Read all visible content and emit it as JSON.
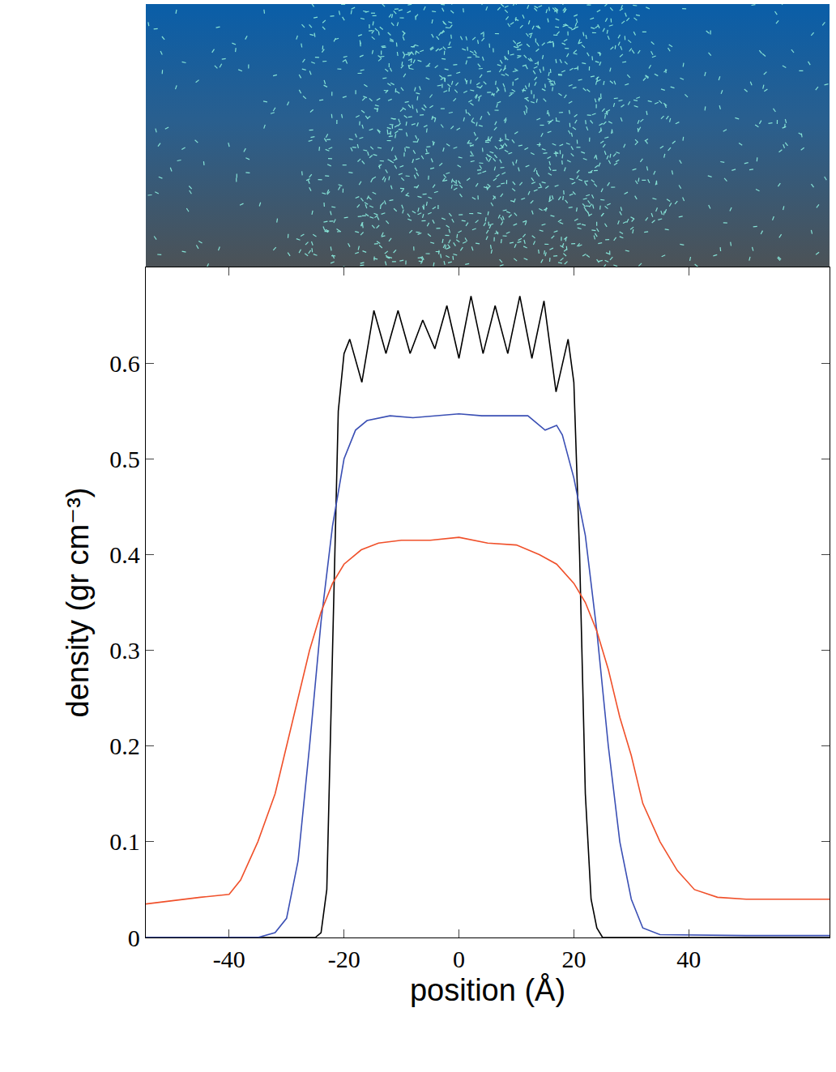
{
  "chart_data": {
    "type": "line",
    "x_label": "position (Å)",
    "y_label": "density (gr cm⁻³)",
    "xlim": [
      -54.5,
      64.5
    ],
    "ylim": [
      0,
      0.7
    ],
    "xticks": [
      -40,
      -20,
      0,
      20,
      40
    ],
    "yticks": [
      0,
      0.1,
      0.2,
      0.3,
      0.4,
      0.5,
      0.6
    ],
    "grid": false,
    "series": [
      {
        "color": "#000000",
        "line_style": "solid",
        "x": [
          -54.5,
          -30,
          -25,
          -24,
          -23,
          -22,
          -21,
          -20,
          -19,
          -16.9,
          -14.8,
          -12.7,
          -10.6,
          -8.5,
          -6.3,
          -4.2,
          -2.1,
          0,
          2.1,
          4.2,
          6.3,
          8.5,
          10.6,
          12.7,
          14.8,
          16.9,
          19,
          20,
          21,
          22,
          23,
          24,
          25,
          40,
          64.5
        ],
        "values": [
          0,
          0,
          0,
          0.005,
          0.05,
          0.3,
          0.55,
          0.61,
          0.625,
          0.58,
          0.655,
          0.61,
          0.655,
          0.61,
          0.645,
          0.615,
          0.66,
          0.605,
          0.67,
          0.61,
          0.66,
          0.61,
          0.67,
          0.605,
          0.665,
          0.57,
          0.625,
          0.58,
          0.4,
          0.15,
          0.04,
          0.01,
          0,
          0,
          0
        ]
      },
      {
        "color": "#3a4fb4",
        "line_style": "solid",
        "x": [
          -54.5,
          -35,
          -32,
          -30,
          -28,
          -26,
          -24,
          -22,
          -20,
          -18,
          -16,
          -12,
          -8,
          -4,
          0,
          4,
          8,
          12,
          15,
          17,
          18,
          20,
          22,
          24,
          26,
          28,
          30,
          32,
          35,
          50,
          64.5
        ],
        "values": [
          0,
          0,
          0.005,
          0.02,
          0.08,
          0.2,
          0.33,
          0.43,
          0.5,
          0.53,
          0.54,
          0.545,
          0.543,
          0.545,
          0.547,
          0.545,
          0.545,
          0.545,
          0.53,
          0.535,
          0.525,
          0.48,
          0.42,
          0.32,
          0.2,
          0.1,
          0.04,
          0.01,
          0.003,
          0.002,
          0.002
        ]
      },
      {
        "color": "#f0502a",
        "line_style": "solid",
        "x": [
          -54.5,
          -45,
          -40,
          -38,
          -35,
          -32,
          -30,
          -28,
          -26,
          -24,
          -22,
          -20,
          -17,
          -14,
          -10,
          -5,
          0,
          5,
          10,
          14,
          17,
          20,
          22,
          24,
          26,
          28,
          30,
          32,
          35,
          38,
          41,
          45,
          50,
          55,
          64.5
        ],
        "values": [
          0.035,
          0.042,
          0.045,
          0.06,
          0.1,
          0.15,
          0.2,
          0.25,
          0.3,
          0.34,
          0.37,
          0.39,
          0.405,
          0.412,
          0.415,
          0.415,
          0.418,
          0.412,
          0.41,
          0.4,
          0.39,
          0.37,
          0.35,
          0.32,
          0.28,
          0.23,
          0.19,
          0.14,
          0.1,
          0.07,
          0.05,
          0.042,
          0.04,
          0.04,
          0.04
        ]
      }
    ]
  }
}
